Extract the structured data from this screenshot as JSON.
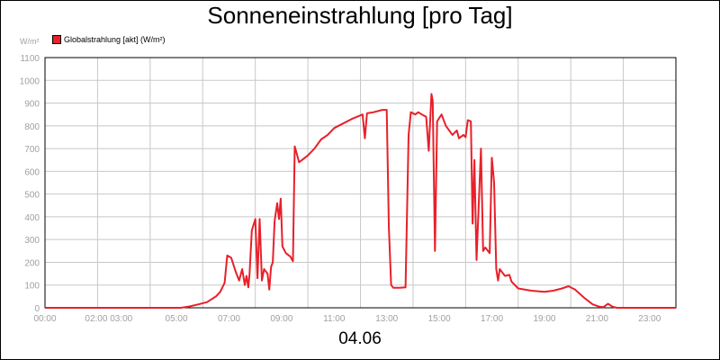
{
  "chart_data": {
    "type": "line",
    "title": "Sonneneinstrahlung [pro Tag]",
    "subtitle": "04.06",
    "ylabel": "W/m²",
    "ylim": [
      0,
      1100
    ],
    "yticks": [
      "1100",
      "1000",
      "900",
      "800",
      "700",
      "600",
      "500",
      "400",
      "300",
      "200",
      "100",
      "0"
    ],
    "xticks": [
      "00:00",
      "02:00 03:00",
      "05:00",
      "07:00",
      "09:00",
      "11:00",
      "13:00",
      "15:00",
      "17:00",
      "19:00",
      "21:00",
      "23:00"
    ],
    "grid": true,
    "legend_position": "top-left",
    "series": [
      {
        "name": "Globalstrahlung [akt] (W/m²)",
        "color": "#e8202a",
        "points": [
          [
            "00:00",
            0
          ],
          [
            "05:10",
            0
          ],
          [
            "05:30",
            6
          ],
          [
            "05:50",
            15
          ],
          [
            "06:10",
            25
          ],
          [
            "06:30",
            50
          ],
          [
            "06:40",
            70
          ],
          [
            "06:50",
            110
          ],
          [
            "06:56",
            230
          ],
          [
            "07:05",
            220
          ],
          [
            "07:15",
            160
          ],
          [
            "07:23",
            120
          ],
          [
            "07:30",
            170
          ],
          [
            "07:36",
            100
          ],
          [
            "07:40",
            140
          ],
          [
            "07:44",
            90
          ],
          [
            "07:47",
            150
          ],
          [
            "07:52",
            340
          ],
          [
            "08:00",
            390
          ],
          [
            "08:05",
            130
          ],
          [
            "08:10",
            390
          ],
          [
            "08:15",
            120
          ],
          [
            "08:20",
            170
          ],
          [
            "08:28",
            150
          ],
          [
            "08:32",
            80
          ],
          [
            "08:36",
            180
          ],
          [
            "08:40",
            200
          ],
          [
            "08:44",
            380
          ],
          [
            "08:50",
            460
          ],
          [
            "08:54",
            390
          ],
          [
            "08:58",
            480
          ],
          [
            "09:02",
            270
          ],
          [
            "09:10",
            240
          ],
          [
            "09:20",
            225
          ],
          [
            "09:26",
            205
          ],
          [
            "09:30",
            710
          ],
          [
            "09:40",
            640
          ],
          [
            "10:00",
            670
          ],
          [
            "10:15",
            700
          ],
          [
            "10:30",
            740
          ],
          [
            "10:45",
            760
          ],
          [
            "11:00",
            790
          ],
          [
            "11:20",
            810
          ],
          [
            "11:40",
            830
          ],
          [
            "12:05",
            850
          ],
          [
            "12:10",
            745
          ],
          [
            "12:15",
            855
          ],
          [
            "12:30",
            860
          ],
          [
            "12:50",
            870
          ],
          [
            "13:00",
            870
          ],
          [
            "13:05",
            350
          ],
          [
            "13:10",
            100
          ],
          [
            "13:15",
            88
          ],
          [
            "13:30",
            88
          ],
          [
            "13:43",
            90
          ],
          [
            "13:50",
            760
          ],
          [
            "13:55",
            860
          ],
          [
            "14:05",
            850
          ],
          [
            "14:12",
            860
          ],
          [
            "14:20",
            850
          ],
          [
            "14:30",
            840
          ],
          [
            "14:36",
            690
          ],
          [
            "14:42",
            940
          ],
          [
            "14:45",
            910
          ],
          [
            "14:50",
            250
          ],
          [
            "14:55",
            820
          ],
          [
            "15:05",
            850
          ],
          [
            "15:15",
            800
          ],
          [
            "15:30",
            760
          ],
          [
            "15:40",
            780
          ],
          [
            "15:45",
            745
          ],
          [
            "15:55",
            760
          ],
          [
            "16:00",
            750
          ],
          [
            "16:05",
            825
          ],
          [
            "16:12",
            820
          ],
          [
            "16:16",
            370
          ],
          [
            "16:20",
            650
          ],
          [
            "16:25",
            210
          ],
          [
            "16:30",
            450
          ],
          [
            "16:35",
            700
          ],
          [
            "16:40",
            250
          ],
          [
            "16:45",
            265
          ],
          [
            "16:55",
            240
          ],
          [
            "17:00",
            660
          ],
          [
            "17:05",
            550
          ],
          [
            "17:10",
            170
          ],
          [
            "17:14",
            120
          ],
          [
            "17:18",
            170
          ],
          [
            "17:22",
            160
          ],
          [
            "17:30",
            140
          ],
          [
            "17:40",
            145
          ],
          [
            "17:45",
            115
          ],
          [
            "18:00",
            85
          ],
          [
            "18:30",
            75
          ],
          [
            "19:00",
            70
          ],
          [
            "19:20",
            75
          ],
          [
            "19:40",
            85
          ],
          [
            "19:55",
            95
          ],
          [
            "20:10",
            80
          ],
          [
            "20:30",
            45
          ],
          [
            "20:50",
            15
          ],
          [
            "21:05",
            5
          ],
          [
            "21:15",
            3
          ],
          [
            "21:25",
            18
          ],
          [
            "21:35",
            5
          ],
          [
            "21:45",
            0
          ],
          [
            "24:00",
            0
          ]
        ]
      }
    ]
  }
}
